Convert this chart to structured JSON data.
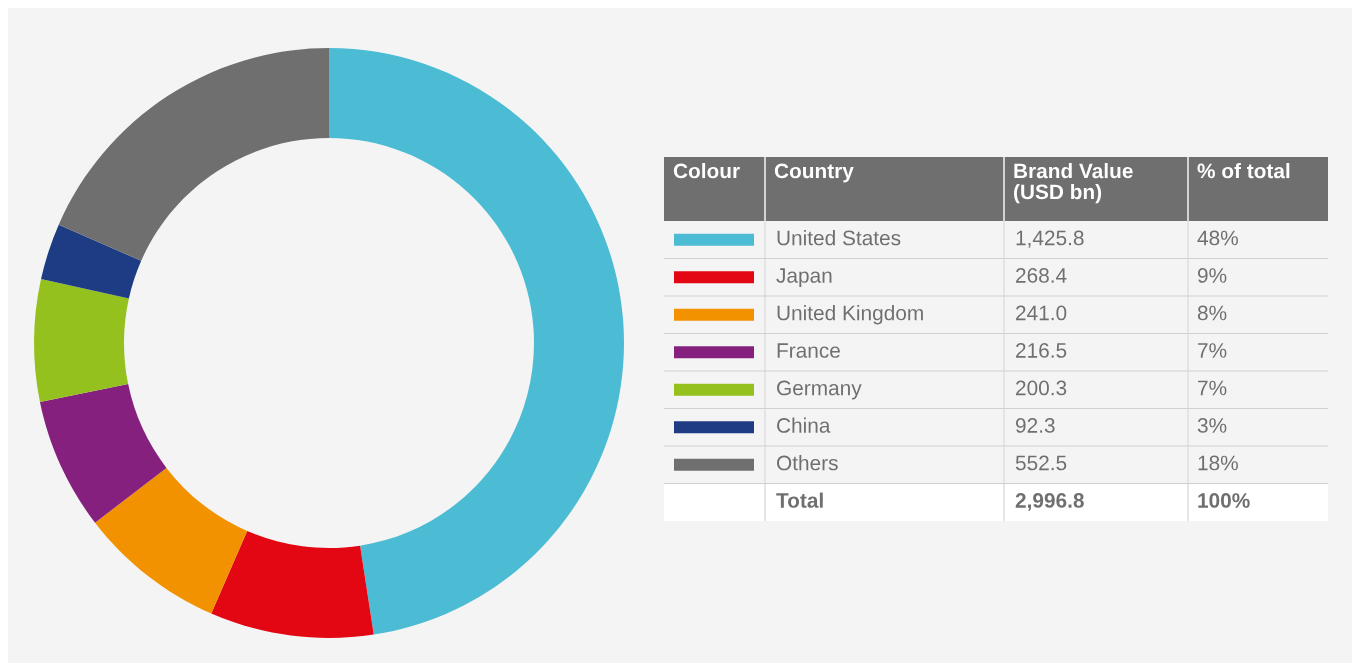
{
  "chart_data": {
    "type": "donut",
    "categories": [
      "United States",
      "Japan",
      "United Kingdom",
      "France",
      "Germany",
      "China",
      "Others"
    ],
    "values": [
      1425.8,
      268.4,
      241.0,
      216.5,
      200.3,
      92.3,
      552.5
    ],
    "colors": [
      "#4bbcd4",
      "#e30613",
      "#f39200",
      "#86207e",
      "#95c11f",
      "#1d3c84",
      "#706f6f"
    ],
    "value_labels": [
      "1,425.8",
      "268.4",
      "241.0",
      "216.5",
      "200.3",
      "92.3",
      "552.5"
    ],
    "annotations": [
      "Colour",
      "Country",
      "Brand Value\n(USD bn)",
      "% of total",
      "48%",
      "9%",
      "8%",
      "7%",
      "7%",
      "3%",
      "18%",
      "Total"
    ],
    "totals": [
      "2,996.8",
      "100%"
    ],
    "legend": "right"
  }
}
